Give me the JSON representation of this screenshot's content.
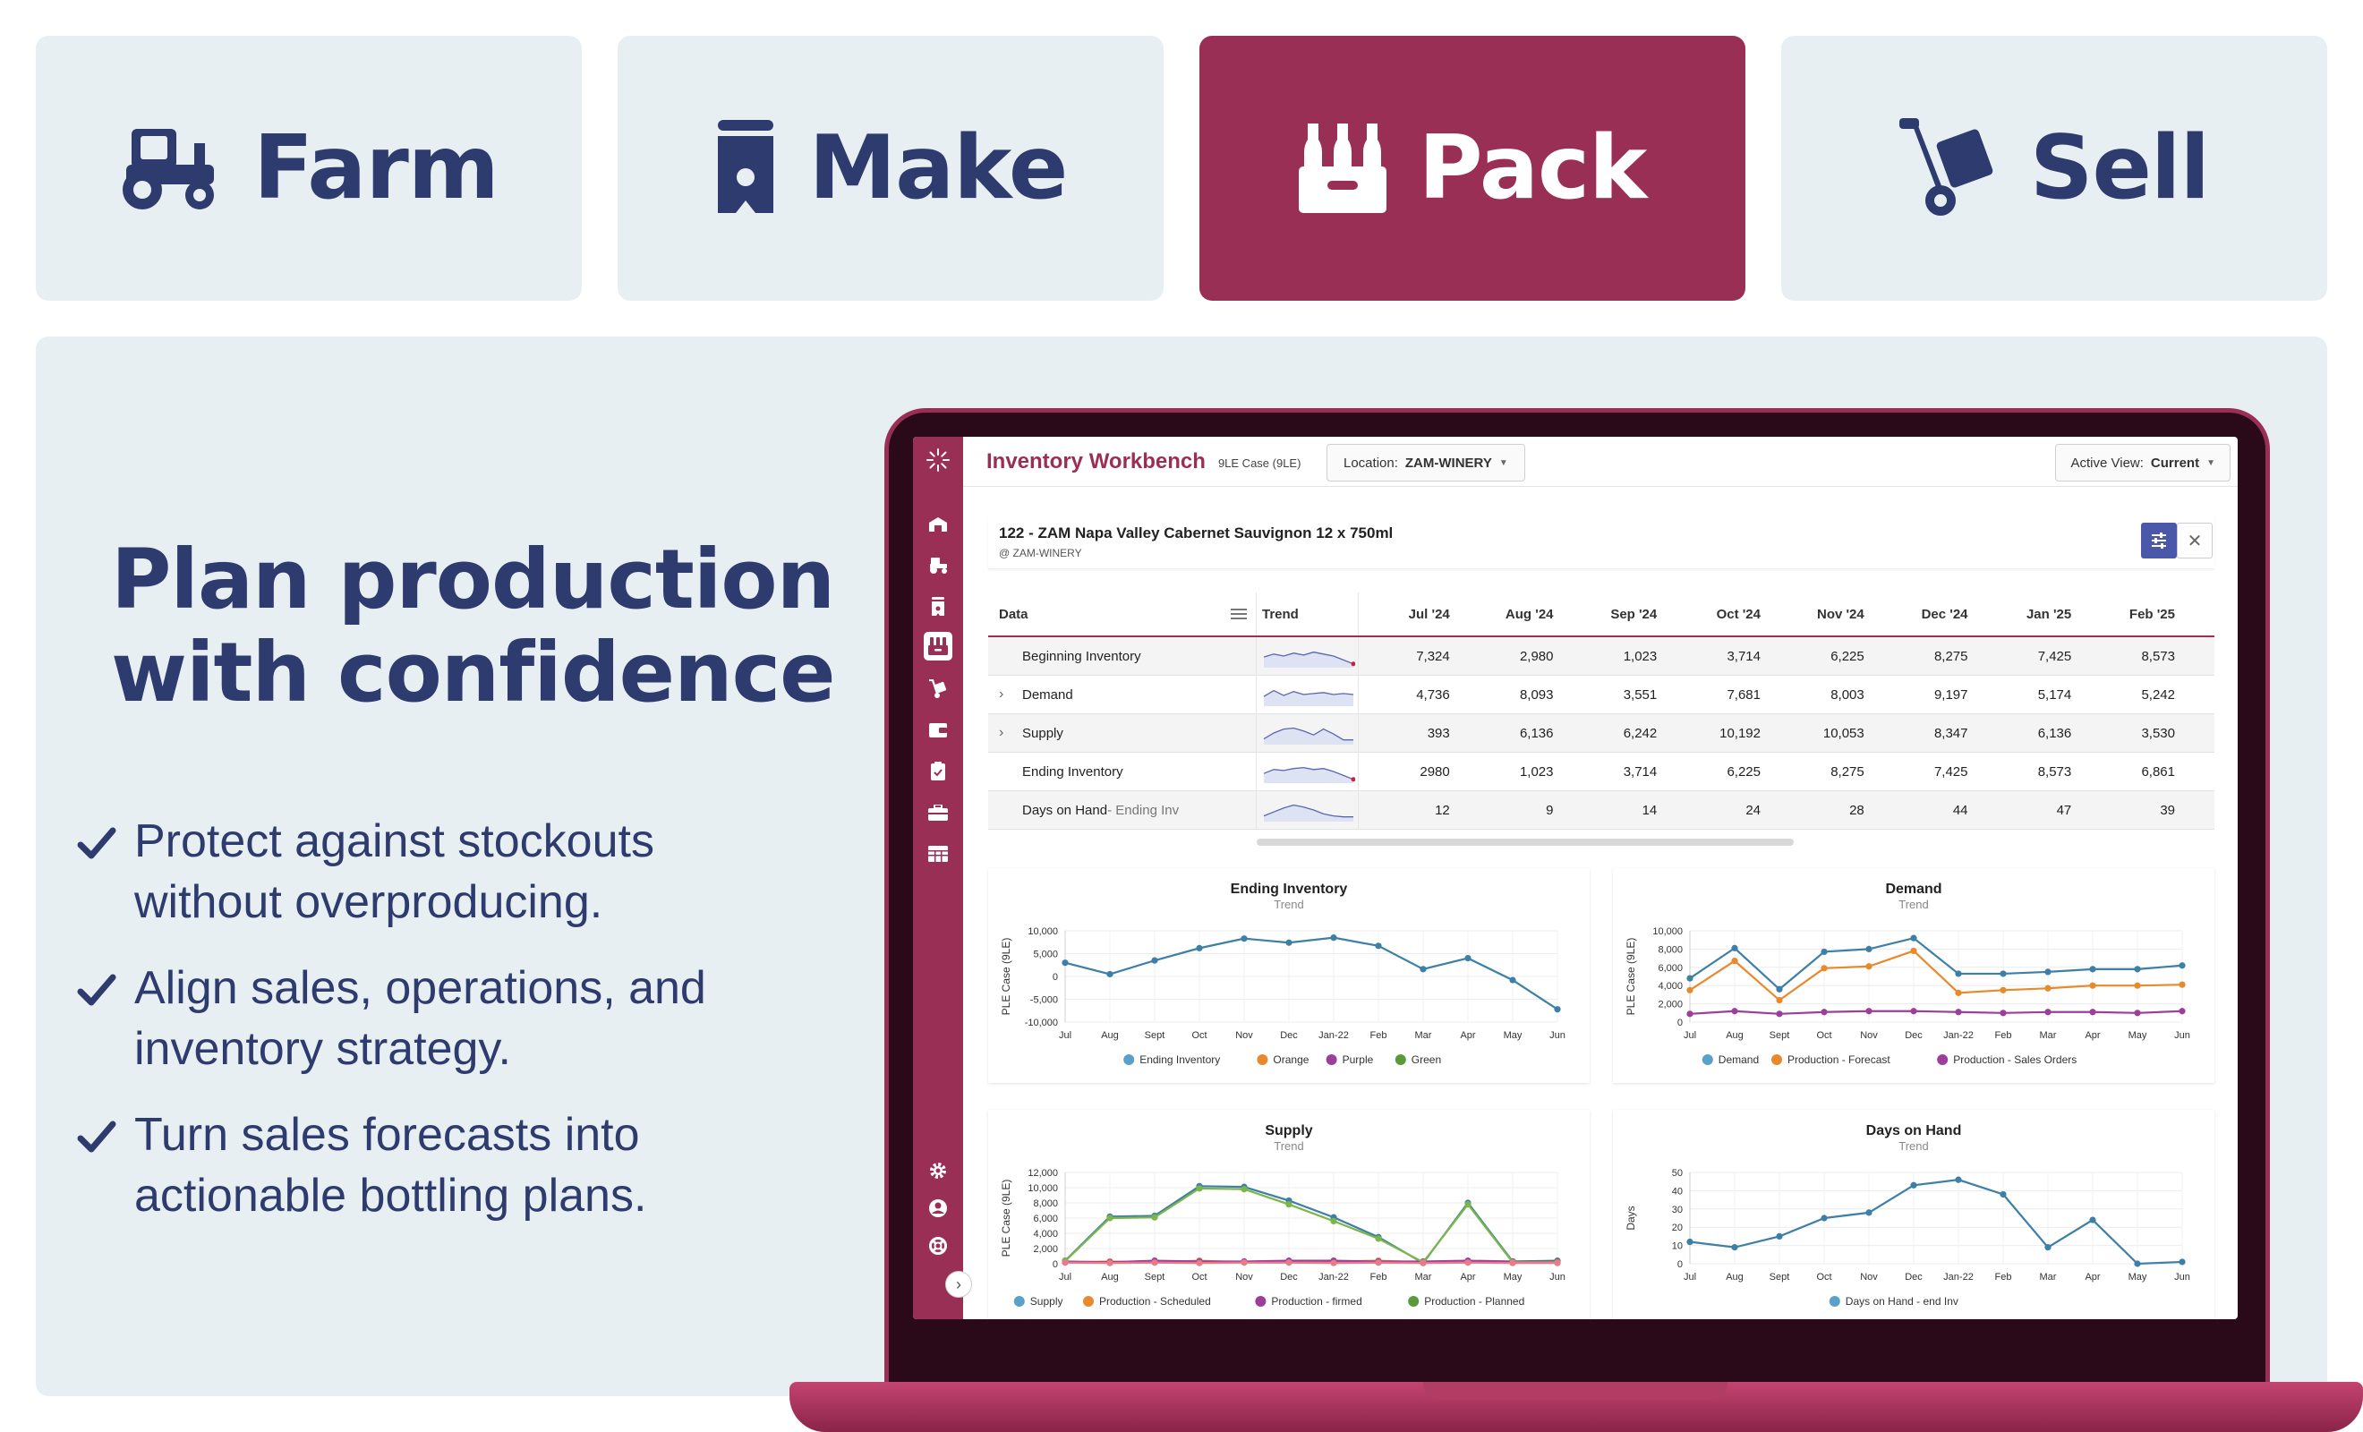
{
  "tabs": [
    {
      "label": "Farm",
      "icon": "tractor-icon",
      "active": false
    },
    {
      "label": "Make",
      "icon": "tank-icon",
      "active": false
    },
    {
      "label": "Pack",
      "icon": "bottles-crate-icon",
      "active": true
    },
    {
      "label": "Sell",
      "icon": "hand-truck-icon",
      "active": false
    }
  ],
  "colors": {
    "brand": "#9a2f55",
    "navy": "#2e3b6e",
    "panel": "#e8eff3",
    "accent_blue": "#4b57a8"
  },
  "hero": {
    "headline_line1": "Plan production",
    "headline_line2": "with confidence",
    "bullets": [
      {
        "line1": "Protect against stockouts",
        "line2": "without overproducing."
      },
      {
        "line1": "Align sales, operations, and",
        "line2": "inventory strategy."
      },
      {
        "line1": "Turn sales forecasts into",
        "line2": "actionable bottling plans."
      }
    ]
  },
  "app": {
    "title": "Inventory Workbench",
    "unit": "9LE Case (9LE)",
    "location_label": "Location:",
    "location_value": "ZAM-WINERY",
    "view_label": "Active View:",
    "view_value": "Current",
    "sidebar_icons": [
      "winery-icon",
      "tractor-icon",
      "tank-icon",
      "bottles-crate-icon",
      "hand-truck-icon",
      "wallet-icon",
      "clipboard-icon",
      "toolbox-icon",
      "table-icon"
    ],
    "sidebar_bottom_icons": [
      "gear-icon",
      "user-icon",
      "lifebuoy-icon"
    ],
    "product": {
      "name": "122 - ZAM Napa Valley Cabernet Sauvignon 12 x 750ml",
      "location": "@ ZAM-WINERY"
    },
    "table": {
      "headers": {
        "data": "Data",
        "trend": "Trend"
      },
      "months": [
        "Jul '24",
        "Aug '24",
        "Sep '24",
        "Oct '24",
        "Nov '24",
        "Dec '24",
        "Jan '25",
        "Feb '25"
      ],
      "rows": [
        {
          "label": "Beginning Inventory",
          "sub": "",
          "expandable": false,
          "values": [
            "7,324",
            "2,980",
            "1,023",
            "3,714",
            "6,225",
            "8,275",
            "7,425",
            "8,573"
          ]
        },
        {
          "label": "Demand",
          "sub": "",
          "expandable": true,
          "values": [
            "4,736",
            "8,093",
            "3,551",
            "7,681",
            "8,003",
            "9,197",
            "5,174",
            "5,242"
          ]
        },
        {
          "label": "Supply",
          "sub": "",
          "expandable": true,
          "values": [
            "393",
            "6,136",
            "6,242",
            "10,192",
            "10,053",
            "8,347",
            "6,136",
            "3,530"
          ]
        },
        {
          "label": "Ending Inventory",
          "sub": "",
          "expandable": false,
          "values": [
            "2980",
            "1,023",
            "3,714",
            "6,225",
            "8,275",
            "7,425",
            "8,573",
            "6,861"
          ]
        },
        {
          "label": "Days on Hand",
          "sub": " - Ending Inv",
          "expandable": false,
          "values": [
            "12",
            "9",
            "14",
            "24",
            "28",
            "44",
            "47",
            "39"
          ]
        }
      ]
    }
  },
  "chart_data": [
    {
      "type": "line",
      "title": "Ending Inventory",
      "subtitle": "Trend",
      "ylabel": "PLE Case (9LE)",
      "xlabel": "",
      "x": [
        "Jul",
        "Aug",
        "Sept",
        "Oct",
        "Nov",
        "Dec",
        "Jan-22",
        "Feb",
        "Mar",
        "Apr",
        "May",
        "Jun"
      ],
      "ylim": [
        -10000,
        10000
      ],
      "yticks": [
        "10,000",
        "5,000",
        "0",
        "-5,000",
        "-10,000"
      ],
      "ytick_values": [
        10000,
        5000,
        0,
        -5000,
        -10000
      ],
      "legend": [
        "Ending Inventory",
        "Orange",
        "Purple",
        "Green"
      ],
      "legend_colors": [
        "#5aa0c8",
        "#e8892b",
        "#9c3f9a",
        "#5a9a3a"
      ],
      "series": [
        {
          "name": "Ending Inventory",
          "color": "#3d7fa6",
          "values": [
            3000,
            500,
            3500,
            6200,
            8300,
            7400,
            8500,
            6700,
            1600,
            4000,
            -800,
            -7200
          ]
        }
      ]
    },
    {
      "type": "line",
      "title": "Demand",
      "subtitle": "Trend",
      "ylabel": "PLE Case (9LE)",
      "xlabel": "",
      "x": [
        "Jul",
        "Aug",
        "Sept",
        "Oct",
        "Nov",
        "Dec",
        "Jan-22",
        "Feb",
        "Mar",
        "Apr",
        "May",
        "Jun"
      ],
      "ylim": [
        0,
        10000
      ],
      "yticks": [
        "10,000",
        "8,000",
        "6,000",
        "4,000",
        "2,000",
        "0"
      ],
      "ytick_values": [
        10000,
        8000,
        6000,
        4000,
        2000,
        0
      ],
      "legend": [
        "Demand",
        "Production - Forecast",
        "Production - Sales Orders"
      ],
      "legend_colors": [
        "#5aa0c8",
        "#e8892b",
        "#9c3f9a"
      ],
      "series": [
        {
          "name": "Demand",
          "color": "#3d7fa6",
          "values": [
            4800,
            8100,
            3600,
            7700,
            8000,
            9200,
            5300,
            5300,
            5500,
            5800,
            5800,
            6200
          ]
        },
        {
          "name": "Production - Forecast",
          "color": "#e8892b",
          "values": [
            3500,
            6700,
            2400,
            5900,
            6100,
            7800,
            3200,
            3500,
            3700,
            4000,
            4000,
            4100
          ]
        },
        {
          "name": "Production - Sales Orders",
          "color": "#9c3f9a",
          "values": [
            900,
            1200,
            900,
            1100,
            1200,
            1200,
            1100,
            1000,
            1100,
            1100,
            1000,
            1200
          ]
        }
      ]
    },
    {
      "type": "line",
      "title": "Supply",
      "subtitle": "Trend",
      "ylabel": "PLE Case (9LE)",
      "xlabel": "",
      "x": [
        "Jul",
        "Aug",
        "Sept",
        "Oct",
        "Nov",
        "Dec",
        "Jan-22",
        "Feb",
        "Mar",
        "Apr",
        "May",
        "Jun"
      ],
      "ylim": [
        0,
        12000
      ],
      "yticks": [
        "12,000",
        "10,000",
        "8,000",
        "6,000",
        "4,000",
        "2,000",
        "0"
      ],
      "ytick_values": [
        12000,
        10000,
        8000,
        6000,
        4000,
        2000,
        0
      ],
      "legend": [
        "Supply",
        "Production - Scheduled",
        "Production - firmed",
        "Production - Planned"
      ],
      "legend_colors": [
        "#5aa0c8",
        "#e8892b",
        "#9c3f9a",
        "#5a9a3a"
      ],
      "series": [
        {
          "name": "Supply",
          "color": "#3d7fa6",
          "values": [
            400,
            6200,
            6300,
            10200,
            10100,
            8300,
            6100,
            3500,
            100,
            8000,
            300,
            400
          ]
        },
        {
          "name": "Production - Scheduled",
          "color": "#e8892b",
          "values": [
            200,
            300,
            200,
            400,
            200,
            300,
            300,
            400,
            200,
            300,
            200,
            200
          ]
        },
        {
          "name": "Production - firmed",
          "color": "#9c3f9a",
          "values": [
            300,
            200,
            400,
            300,
            300,
            400,
            400,
            300,
            300,
            400,
            300,
            300
          ]
        },
        {
          "name": "Production - Planned",
          "color": "#7ab648",
          "values": [
            350,
            6000,
            6100,
            9900,
            9800,
            7800,
            5600,
            3300,
            200,
            7800,
            200,
            200
          ]
        },
        {
          "name": "",
          "color": "#e87a8a",
          "values": [
            150,
            100,
            150,
            100,
            150,
            150,
            100,
            150,
            100,
            150,
            100,
            100
          ]
        }
      ]
    },
    {
      "type": "line",
      "title": "Days on Hand",
      "subtitle": "Trend",
      "ylabel": "Days",
      "xlabel": "",
      "x": [
        "Jul",
        "Aug",
        "Sept",
        "Oct",
        "Nov",
        "Dec",
        "Jan-22",
        "Feb",
        "Mar",
        "Apr",
        "May",
        "Jun"
      ],
      "ylim": [
        0,
        50
      ],
      "yticks": [
        "50",
        "40",
        "30",
        "20",
        "10",
        "0"
      ],
      "ytick_values": [
        50,
        40,
        30,
        20,
        10,
        0
      ],
      "legend": [
        "Days on Hand - end Inv"
      ],
      "legend_colors": [
        "#5aa0c8"
      ],
      "series": [
        {
          "name": "Days on Hand - end Inv",
          "color": "#3d7fa6",
          "values": [
            12,
            9,
            15,
            25,
            28,
            43,
            46,
            38,
            9,
            24,
            0,
            1
          ]
        }
      ]
    }
  ]
}
